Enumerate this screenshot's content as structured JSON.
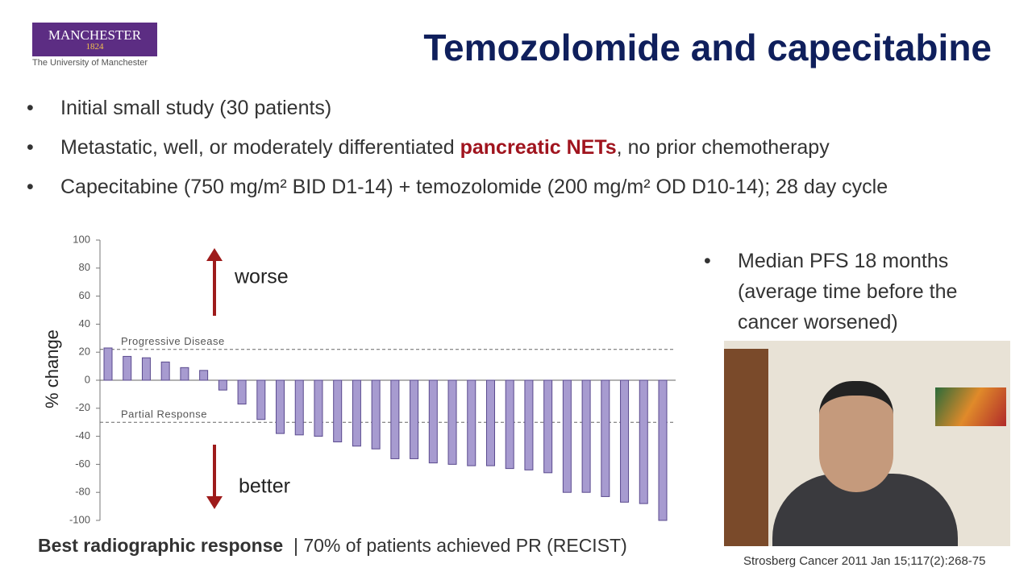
{
  "logo": {
    "name": "MANCHESTER",
    "year": "1824",
    "subtitle": "The University of Manchester"
  },
  "title": "Temozolomide and capecitabine",
  "bullets": [
    [
      "Initial small study (30 patients)"
    ],
    [
      "Metastatic, well, or moderately differentiated ",
      "pancreatic NETs",
      ", no prior chemotherapy"
    ],
    [
      "Capecitabine (750 mg/m² BID D1-14) + temozolomide (200 mg/m² OD D10-14); 28 day cycle"
    ]
  ],
  "side_bullet": "Median PFS 18 months (average time before the cancer worsened)",
  "caption": {
    "bold": "Best radiographic response",
    "rest": "| 70% of patients achieved PR (RECIST)"
  },
  "citation": "Strosberg Cancer 2011 Jan 15;117(2):268-75",
  "chart_data": {
    "type": "bar",
    "ylabel": "% change",
    "categories": [
      null,
      null,
      null,
      null,
      null,
      null,
      null,
      null,
      null,
      null,
      null,
      null,
      null,
      null,
      null,
      null,
      null,
      null,
      null,
      null,
      null,
      null,
      null,
      null,
      null,
      null,
      null,
      null,
      null,
      null
    ],
    "values": [
      23,
      17,
      16,
      13,
      9,
      7,
      -7,
      -17,
      -28,
      -38,
      -39,
      -40,
      -44,
      -47,
      -49,
      -56,
      -56,
      -59,
      -60,
      -61,
      -61,
      -63,
      -64,
      -66,
      -80,
      -80,
      -83,
      -87,
      -88,
      -100
    ],
    "color": "#a79bd0",
    "ylim": [
      -100,
      100
    ],
    "yticks": [
      -100,
      -80,
      -60,
      -40,
      -20,
      0,
      20,
      40,
      60,
      80,
      100
    ],
    "reference_lines": [
      {
        "value": 22,
        "label": "Progressive Disease"
      },
      {
        "value": -30,
        "label": "Partial Response"
      }
    ],
    "annotations": {
      "up": "worse",
      "down": "better"
    }
  }
}
